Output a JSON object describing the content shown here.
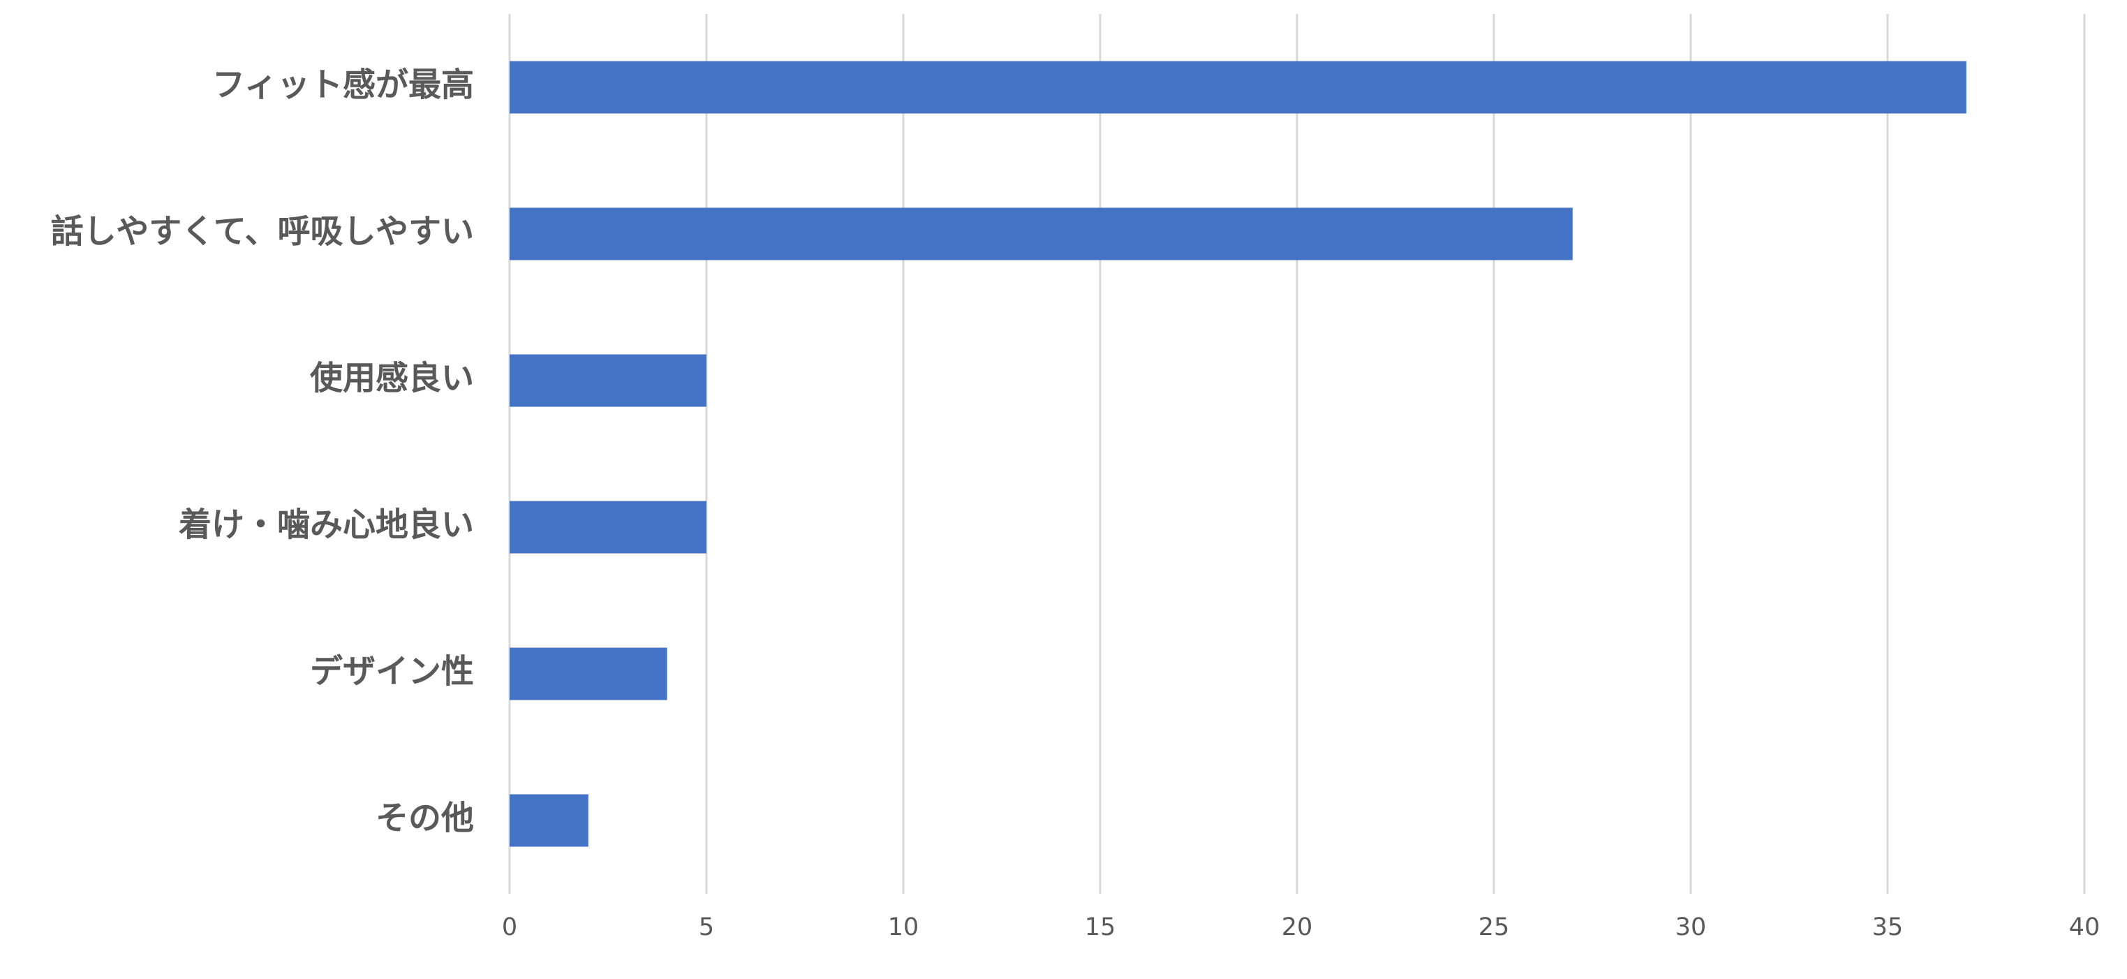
{
  "chart_data": {
    "type": "barh",
    "categories": [
      "フィット感が最高",
      "話しやすくて、呼吸しやすい",
      "使用感良い",
      "着け・噛み心地良い",
      "デザイン性",
      "その他"
    ],
    "values": [
      37,
      27,
      5,
      5,
      4,
      2
    ],
    "color": "#4472c4",
    "xlim": [
      0,
      40
    ],
    "xticks": [
      0,
      5,
      10,
      15,
      20,
      25,
      30,
      35,
      40
    ],
    "grid": true
  }
}
